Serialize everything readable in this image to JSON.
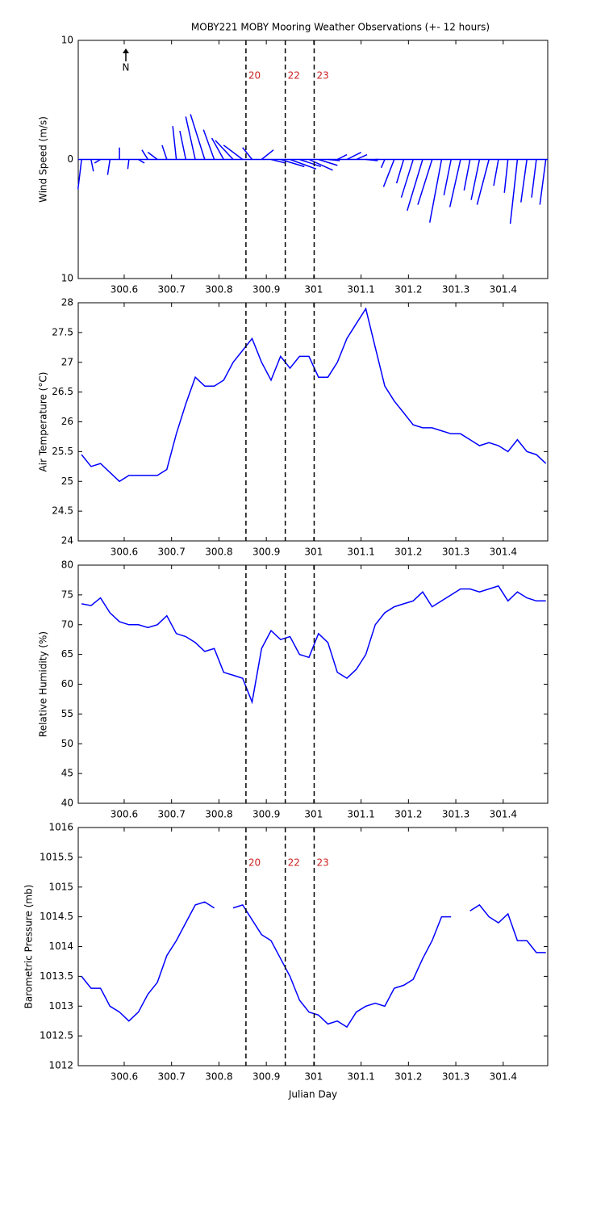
{
  "title": "MOBY221 MOBY Mooring Weather Observations (+- 12 hours)",
  "chart_data": [
    {
      "type": "vector",
      "ylabel": "Wind Speed (m/s)",
      "north_label": "N",
      "color": "#0000ff",
      "xlim": [
        300.503,
        301.494
      ],
      "xticks": [
        300.6,
        300.7,
        300.8,
        300.9,
        301,
        301.1,
        301.2,
        301.3,
        301.4
      ],
      "ylim": [
        -10,
        10
      ],
      "yticks": [
        {
          "value": -10,
          "label": "10"
        },
        0,
        10
      ],
      "markers": [
        300.857,
        300.94,
        301.001
      ],
      "marker_labels": [
        "20",
        "22",
        "23"
      ],
      "marker_label_color": "#cc2222",
      "x": [
        300.51,
        300.53,
        300.55,
        300.57,
        300.59,
        300.61,
        300.63,
        300.65,
        300.67,
        300.69,
        300.71,
        300.73,
        300.75,
        300.77,
        300.79,
        300.81,
        300.83,
        300.85,
        300.87,
        300.89,
        300.91,
        300.93,
        300.95,
        300.97,
        300.99,
        301.01,
        301.03,
        301.05,
        301.07,
        301.09,
        301.11,
        301.13,
        301.15,
        301.17,
        301.19,
        301.21,
        301.23,
        301.25,
        301.27,
        301.29,
        301.31,
        301.33,
        301.35,
        301.37,
        301.39,
        301.41,
        301.43,
        301.45,
        301.47,
        301.49
      ],
      "u": [
        -0.3,
        0.2,
        -0.5,
        -0.2,
        0,
        -0.1,
        0.5,
        -0.5,
        -0.8,
        -0.4,
        -0.3,
        -0.5,
        -0.8,
        -1.2,
        -0.9,
        -1.0,
        -1.5,
        -1.6,
        -0.8,
        1.0,
        1.2,
        2.0,
        2.2,
        1.8,
        2.0,
        1.6,
        1.0,
        0.8,
        1.2,
        0.9,
        1.0,
        0.3,
        -0.3,
        -0.9,
        -0.6,
        -1.0,
        -1.3,
        -1.2,
        -1.0,
        -0.6,
        -0.9,
        -0.5,
        -0.7,
        -1.0,
        -0.4,
        -0.3,
        -0.6,
        -0.5,
        -0.4,
        -0.5
      ],
      "v": [
        -2.5,
        -1.0,
        -0.3,
        -1.3,
        1.0,
        -0.8,
        -0.3,
        0.8,
        0.6,
        1.2,
        2.8,
        2.4,
        3.6,
        3.8,
        2.5,
        1.8,
        1.6,
        1.2,
        1.0,
        0.8,
        -0.3,
        -0.6,
        -0.8,
        -0.6,
        -0.9,
        -0.5,
        -0.1,
        0.4,
        0.6,
        0.4,
        -0.1,
        0,
        -0.7,
        -2.3,
        -2.0,
        -3.2,
        -4.3,
        -3.8,
        -5.3,
        -3.0,
        -4.0,
        -2.6,
        -3.4,
        -3.8,
        -2.2,
        -2.8,
        -5.4,
        -3.6,
        -3.2,
        -3.8
      ]
    },
    {
      "type": "line",
      "ylabel": "Air Temperature (°C)",
      "color": "#0000ff",
      "xlim": [
        300.503,
        301.494
      ],
      "xticks": [
        300.6,
        300.7,
        300.8,
        300.9,
        301,
        301.1,
        301.2,
        301.3,
        301.4
      ],
      "ylim": [
        24,
        28
      ],
      "yticks": [
        24,
        24.5,
        25,
        25.5,
        26,
        26.5,
        27,
        27.5,
        28
      ],
      "markers": [
        300.857,
        300.94,
        301.001
      ],
      "x": [
        300.51,
        300.53,
        300.55,
        300.57,
        300.59,
        300.61,
        300.63,
        300.65,
        300.67,
        300.69,
        300.71,
        300.73,
        300.75,
        300.77,
        300.79,
        300.81,
        300.83,
        300.85,
        300.87,
        300.89,
        300.91,
        300.93,
        300.95,
        300.97,
        300.99,
        301.01,
        301.03,
        301.05,
        301.07,
        301.09,
        301.11,
        301.13,
        301.15,
        301.17,
        301.19,
        301.21,
        301.23,
        301.25,
        301.27,
        301.29,
        301.31,
        301.33,
        301.35,
        301.37,
        301.39,
        301.41,
        301.43,
        301.45,
        301.47,
        301.49
      ],
      "values": [
        25.45,
        25.25,
        25.3,
        25.15,
        25.0,
        25.1,
        25.1,
        25.1,
        25.1,
        25.2,
        25.8,
        26.3,
        26.75,
        26.6,
        26.6,
        26.7,
        27.0,
        27.2,
        27.4,
        27.0,
        26.7,
        27.1,
        26.9,
        27.1,
        27.1,
        26.75,
        26.75,
        27.0,
        27.4,
        27.65,
        27.9,
        27.25,
        26.6,
        26.35,
        26.15,
        25.95,
        25.9,
        25.9,
        25.85,
        25.8,
        25.8,
        25.7,
        25.6,
        25.65,
        25.6,
        25.5,
        25.7,
        25.5,
        25.45,
        25.3
      ]
    },
    {
      "type": "line",
      "ylabel": "Relative Humidity (%)",
      "color": "#0000ff",
      "xlim": [
        300.503,
        301.494
      ],
      "xticks": [
        300.6,
        300.7,
        300.8,
        300.9,
        301,
        301.1,
        301.2,
        301.3,
        301.4
      ],
      "ylim": [
        40,
        80
      ],
      "yticks": [
        40,
        45,
        50,
        55,
        60,
        65,
        70,
        75,
        80
      ],
      "markers": [
        300.857,
        300.94,
        301.001
      ],
      "x": [
        300.51,
        300.53,
        300.55,
        300.57,
        300.59,
        300.61,
        300.63,
        300.65,
        300.67,
        300.69,
        300.71,
        300.73,
        300.75,
        300.77,
        300.79,
        300.81,
        300.83,
        300.85,
        300.87,
        300.89,
        300.91,
        300.93,
        300.95,
        300.97,
        300.99,
        301.01,
        301.03,
        301.05,
        301.07,
        301.09,
        301.11,
        301.13,
        301.15,
        301.17,
        301.19,
        301.21,
        301.23,
        301.25,
        301.27,
        301.29,
        301.31,
        301.33,
        301.35,
        301.37,
        301.39,
        301.41,
        301.43,
        301.45,
        301.47,
        301.49
      ],
      "values": [
        73.5,
        73.2,
        74.5,
        72,
        70.5,
        70,
        70,
        69.5,
        70,
        71.5,
        68.5,
        68,
        67,
        65.5,
        66,
        62,
        61.5,
        61,
        57,
        66,
        69,
        67.5,
        68,
        65,
        64.5,
        68.5,
        67,
        62,
        61,
        62.5,
        65,
        70,
        72,
        73,
        73.5,
        74,
        75.5,
        73,
        74,
        75,
        76,
        76,
        75.5,
        76,
        76.5,
        74,
        75.5,
        74.5,
        74,
        74
      ]
    },
    {
      "type": "line",
      "ylabel": "Barometric Pressure (mb)",
      "xlabel": "Julian Day",
      "color": "#0000ff",
      "xlim": [
        300.503,
        301.494
      ],
      "xticks": [
        300.6,
        300.7,
        300.8,
        300.9,
        301,
        301.1,
        301.2,
        301.3,
        301.4
      ],
      "ylim": [
        1012,
        1016
      ],
      "yticks": [
        1012,
        1012.5,
        1013,
        1013.5,
        1014,
        1014.5,
        1015,
        1015.5,
        1016
      ],
      "markers": [
        300.857,
        300.94,
        301.001
      ],
      "marker_labels": [
        "20",
        "22",
        "23"
      ],
      "marker_label_color": "#cc2222",
      "x": [
        300.51,
        300.53,
        300.55,
        300.57,
        300.59,
        300.61,
        300.63,
        300.65,
        300.67,
        300.69,
        300.71,
        300.73,
        300.75,
        300.77,
        300.79,
        300.81,
        300.83,
        300.85,
        300.87,
        300.89,
        300.91,
        300.93,
        300.95,
        300.97,
        300.99,
        301.01,
        301.03,
        301.05,
        301.07,
        301.09,
        301.11,
        301.13,
        301.15,
        301.17,
        301.19,
        301.21,
        301.23,
        301.25,
        301.27,
        301.29,
        301.31,
        301.33,
        301.35,
        301.37,
        301.39,
        301.41,
        301.43,
        301.45,
        301.47,
        301.49
      ],
      "values": [
        1013.5,
        1013.3,
        1013.3,
        1013.0,
        1012.9,
        1012.75,
        1012.9,
        1013.2,
        1013.4,
        1013.85,
        1014.1,
        1014.4,
        1014.7,
        1014.75,
        1014.65,
        null,
        1014.65,
        1014.7,
        1014.45,
        1014.2,
        1014.1,
        1013.8,
        1013.5,
        1013.1,
        1012.9,
        1012.85,
        1012.7,
        1012.75,
        1012.65,
        1012.9,
        1013.0,
        1013.05,
        1013.0,
        1013.3,
        1013.35,
        1013.45,
        1013.8,
        1014.1,
        1014.5,
        1014.5,
        null,
        1014.6,
        1014.7,
        1014.5,
        1014.4,
        1014.55,
        1014.1,
        1014.1,
        1013.9,
        1013.9
      ]
    }
  ]
}
